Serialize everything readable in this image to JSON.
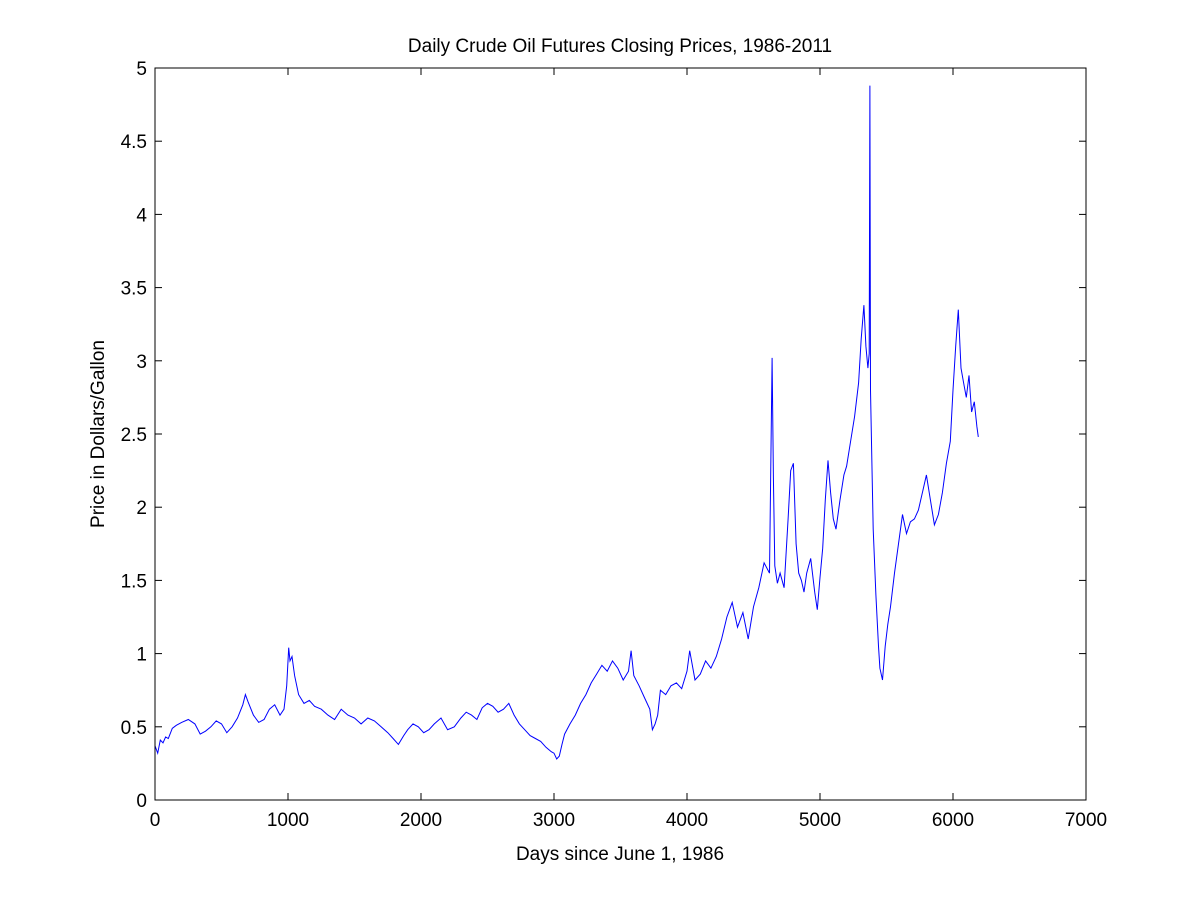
{
  "chart_data": {
    "type": "line",
    "title": "Daily Crude Oil Futures Closing Prices, 1986-2011",
    "xlabel": "Days since June 1, 1986",
    "ylabel": "Price in Dollars/Gallon",
    "xlim": [
      0,
      7000
    ],
    "ylim": [
      0,
      5
    ],
    "x_ticks": [
      0,
      1000,
      2000,
      3000,
      4000,
      5000,
      6000,
      7000
    ],
    "x_tick_labels": [
      "0",
      "1000",
      "2000",
      "3000",
      "4000",
      "5000",
      "6000",
      "7000"
    ],
    "y_ticks": [
      0,
      0.5,
      1,
      1.5,
      2,
      2.5,
      3,
      3.5,
      4,
      4.5,
      5
    ],
    "y_tick_labels": [
      "0",
      "0.5",
      "1",
      "1.5",
      "2",
      "2.5",
      "3",
      "3.5",
      "4",
      "4.5",
      "5"
    ],
    "grid": false,
    "legend": "none",
    "line_color": "#0000ff",
    "series": [
      {
        "x": [
          0,
          20,
          40,
          60,
          80,
          100,
          130,
          160,
          200,
          250,
          300,
          340,
          380,
          420,
          460,
          500,
          540,
          580,
          620,
          660,
          680,
          700,
          740,
          780,
          820,
          860,
          900,
          940,
          970,
          990,
          1005,
          1015,
          1030,
          1050,
          1080,
          1120,
          1160,
          1200,
          1250,
          1300,
          1350,
          1400,
          1450,
          1500,
          1550,
          1600,
          1650,
          1700,
          1750,
          1790,
          1830,
          1870,
          1900,
          1940,
          1980,
          2020,
          2060,
          2100,
          2150,
          2200,
          2250,
          2300,
          2340,
          2380,
          2420,
          2460,
          2500,
          2540,
          2580,
          2620,
          2660,
          2700,
          2740,
          2780,
          2820,
          2860,
          2900,
          2940,
          2980,
          3000,
          3020,
          3040,
          3060,
          3080,
          3120,
          3160,
          3200,
          3240,
          3280,
          3320,
          3360,
          3400,
          3440,
          3480,
          3520,
          3560,
          3580,
          3600,
          3640,
          3680,
          3720,
          3740,
          3760,
          3780,
          3800,
          3840,
          3880,
          3920,
          3960,
          4000,
          4020,
          4060,
          4100,
          4140,
          4180,
          4220,
          4260,
          4300,
          4340,
          4380,
          4420,
          4460,
          4500,
          4540,
          4580,
          4620,
          4640,
          4650,
          4660,
          4680,
          4700,
          4730,
          4760,
          4780,
          4800,
          4820,
          4840,
          4860,
          4880,
          4900,
          4930,
          4960,
          4980,
          5000,
          5020,
          5040,
          5060,
          5080,
          5100,
          5120,
          5150,
          5180,
          5200,
          5230,
          5260,
          5290,
          5310,
          5330,
          5345,
          5360,
          5370,
          5375,
          5380,
          5390,
          5400,
          5420,
          5440,
          5450,
          5470,
          5490,
          5510,
          5530,
          5560,
          5590,
          5620,
          5650,
          5680,
          5710,
          5740,
          5770,
          5800,
          5830,
          5860,
          5890,
          5920,
          5950,
          5980,
          6000,
          6020,
          6040,
          6060,
          6080,
          6100,
          6120,
          6140,
          6160,
          6180,
          6190
        ],
        "y": [
          0.37,
          0.32,
          0.41,
          0.39,
          0.43,
          0.42,
          0.49,
          0.51,
          0.53,
          0.55,
          0.52,
          0.45,
          0.47,
          0.5,
          0.54,
          0.52,
          0.46,
          0.5,
          0.56,
          0.65,
          0.72,
          0.67,
          0.58,
          0.53,
          0.55,
          0.62,
          0.65,
          0.58,
          0.62,
          0.78,
          1.04,
          0.95,
          0.98,
          0.85,
          0.72,
          0.66,
          0.68,
          0.64,
          0.62,
          0.58,
          0.55,
          0.62,
          0.58,
          0.56,
          0.52,
          0.56,
          0.54,
          0.5,
          0.46,
          0.42,
          0.38,
          0.44,
          0.48,
          0.52,
          0.5,
          0.46,
          0.48,
          0.52,
          0.56,
          0.48,
          0.5,
          0.56,
          0.6,
          0.58,
          0.55,
          0.63,
          0.66,
          0.64,
          0.6,
          0.62,
          0.66,
          0.58,
          0.52,
          0.48,
          0.44,
          0.42,
          0.4,
          0.36,
          0.33,
          0.32,
          0.28,
          0.3,
          0.38,
          0.45,
          0.52,
          0.58,
          0.66,
          0.72,
          0.8,
          0.86,
          0.92,
          0.88,
          0.95,
          0.9,
          0.82,
          0.88,
          1.02,
          0.85,
          0.78,
          0.7,
          0.62,
          0.48,
          0.52,
          0.58,
          0.75,
          0.72,
          0.78,
          0.8,
          0.76,
          0.88,
          1.02,
          0.82,
          0.86,
          0.95,
          0.9,
          0.98,
          1.1,
          1.25,
          1.35,
          1.18,
          1.28,
          1.1,
          1.32,
          1.45,
          1.62,
          1.55,
          3.02,
          2.2,
          1.6,
          1.48,
          1.55,
          1.45,
          1.92,
          2.25,
          2.3,
          1.75,
          1.55,
          1.5,
          1.42,
          1.55,
          1.65,
          1.42,
          1.3,
          1.52,
          1.72,
          2.05,
          2.32,
          2.1,
          1.92,
          1.85,
          2.05,
          2.22,
          2.28,
          2.45,
          2.62,
          2.85,
          3.15,
          3.38,
          3.1,
          2.95,
          3.05,
          4.88,
          2.8,
          2.3,
          1.85,
          1.4,
          1.05,
          0.9,
          0.82,
          1.05,
          1.2,
          1.32,
          1.55,
          1.75,
          1.95,
          1.82,
          1.9,
          1.92,
          1.98,
          2.1,
          2.22,
          2.05,
          1.88,
          1.95,
          2.1,
          2.3,
          2.45,
          2.8,
          3.1,
          3.35,
          2.95,
          2.85,
          2.75,
          2.9,
          2.65,
          2.72,
          2.55,
          2.48
        ]
      }
    ]
  }
}
